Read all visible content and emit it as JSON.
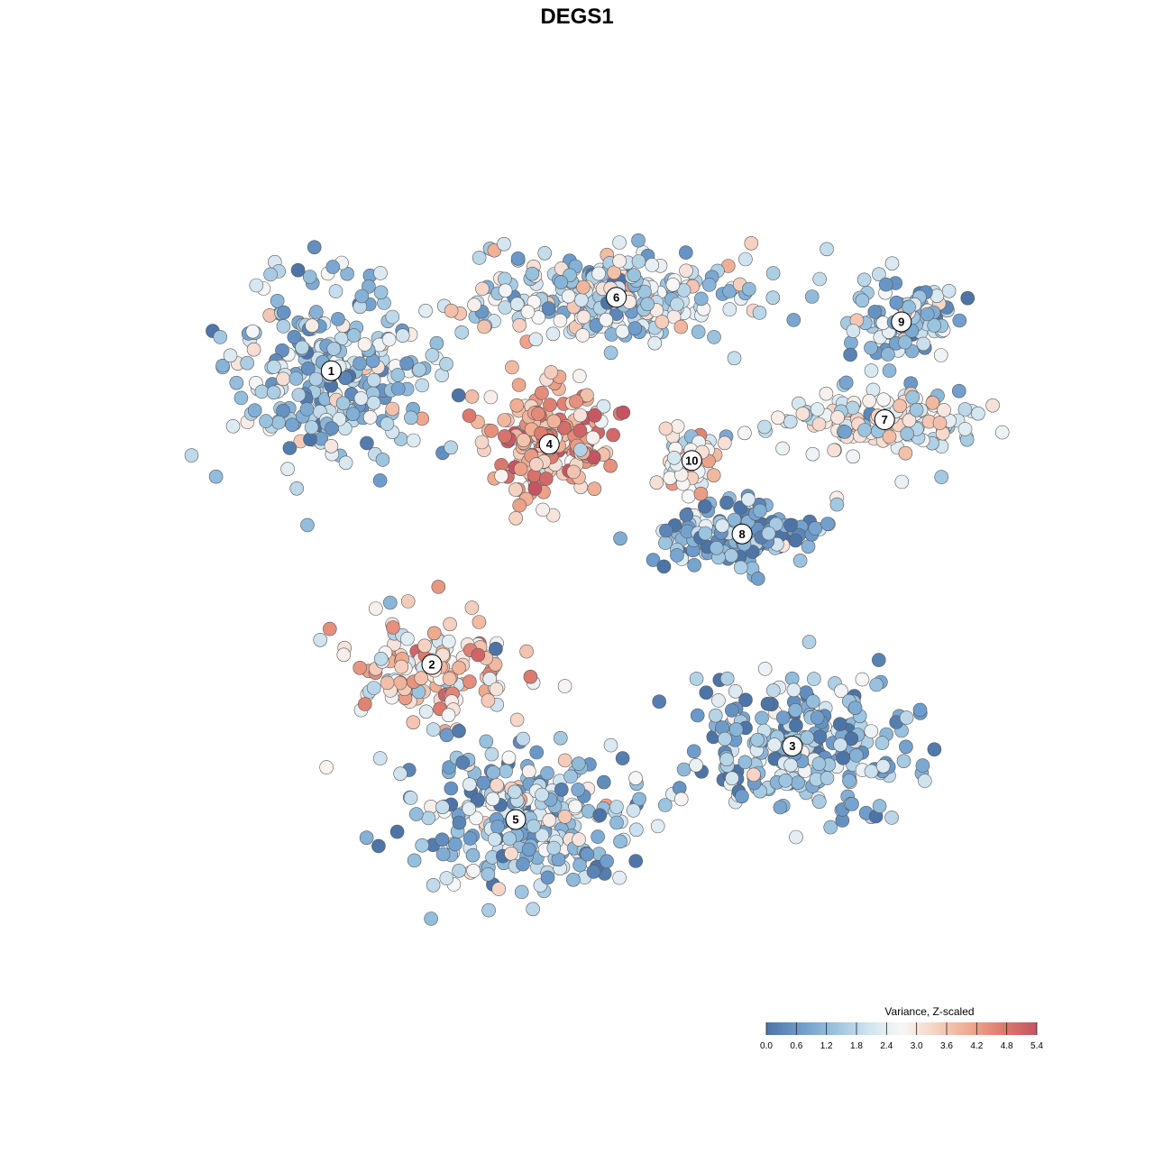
{
  "chart_data": {
    "type": "scatter",
    "title": "DEGS1",
    "xlabel": "",
    "ylabel": "",
    "xlim": [
      0,
      1
    ],
    "ylim": [
      0,
      1
    ],
    "grid": false,
    "point_value_name": "Variance, Z-scaled",
    "clusters": [
      {
        "label": "1",
        "x": 0.18,
        "y": 0.75,
        "mean": 1.6
      },
      {
        "label": "2",
        "x": 0.3,
        "y": 0.39,
        "mean": 3.4
      },
      {
        "label": "3",
        "x": 0.73,
        "y": 0.29,
        "mean": 1.3
      },
      {
        "label": "4",
        "x": 0.44,
        "y": 0.66,
        "mean": 4.0
      },
      {
        "label": "5",
        "x": 0.4,
        "y": 0.2,
        "mean": 1.5
      },
      {
        "label": "6",
        "x": 0.52,
        "y": 0.84,
        "mean": 2.0
      },
      {
        "label": "7",
        "x": 0.84,
        "y": 0.69,
        "mean": 2.4
      },
      {
        "label": "8",
        "x": 0.67,
        "y": 0.55,
        "mean": 1.0
      },
      {
        "label": "9",
        "x": 0.86,
        "y": 0.81,
        "mean": 1.4
      },
      {
        "label": "10",
        "x": 0.61,
        "y": 0.64,
        "mean": 2.7
      }
    ],
    "colorbar": {
      "title": "Variance, Z-scaled",
      "min": 0.0,
      "max": 5.4,
      "ticks": [
        "0.0",
        "0.6",
        "1.2",
        "1.8",
        "2.4",
        "3.0",
        "3.6",
        "4.2",
        "4.8",
        "5.4"
      ],
      "colors": [
        "#4d74a6",
        "#6d9ccc",
        "#98c2de",
        "#cfe3ef",
        "#f7f7f7",
        "#f6d2c2",
        "#efaa8e",
        "#dd7a6e",
        "#c55462"
      ],
      "placement": "bottom-right"
    }
  }
}
